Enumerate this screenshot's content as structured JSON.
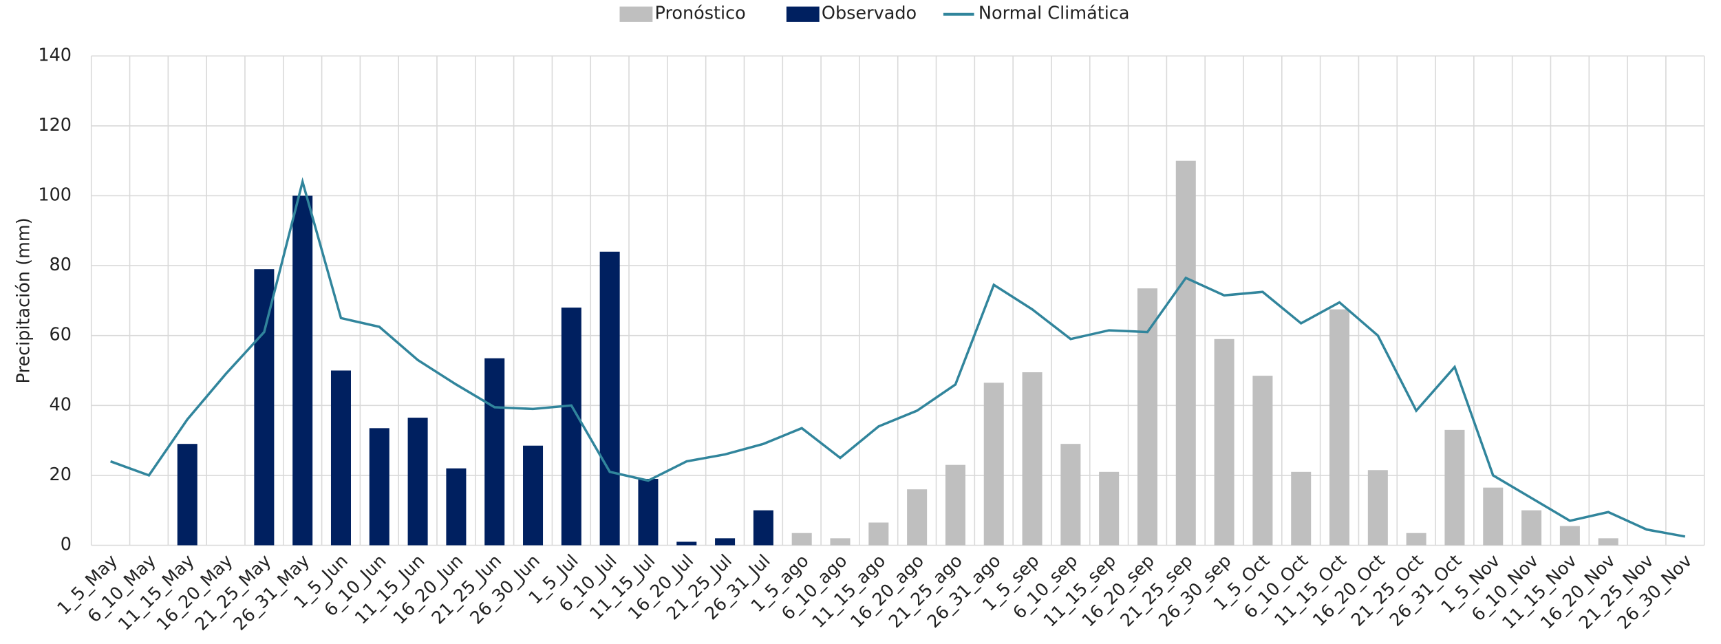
{
  "chart_data": {
    "type": "bar_line",
    "y_label": "Precipitación (mm)",
    "categories": [
      "1_5_May",
      "6_10_May",
      "11_15_May",
      "16_20_May",
      "21_25_May",
      "26_31_May",
      "1_5_Jun",
      "6_10_Jun",
      "11_15_Jun",
      "16_20_Jun",
      "21_25_Jun",
      "26_30_Jun",
      "1_5_Jul",
      "6_10_Jul",
      "11_15_Jul",
      "16_20_Jul",
      "21_25_Jul",
      "26_31_Jul",
      "1_5_ago",
      "6_10_ago",
      "11_15_ago",
      "16_20_ago",
      "21_25_ago",
      "26_31_ago",
      "1_5_sep",
      "6_10_sep",
      "11_15_sep",
      "16_20_sep",
      "21_25_sep",
      "26_30_sep",
      "1_5_Oct",
      "6_10_Oct",
      "11_15_Oct",
      "16_20_Oct",
      "21_25_Oct",
      "26_31_Oct",
      "1_5_Nov",
      "6_10_Nov",
      "11_15_Nov",
      "16_20_Nov",
      "21_25_Nov",
      "26_30_Nov"
    ],
    "series": [
      {
        "name": "Pronóstico",
        "kind": "bar",
        "color": "#bfbfbf",
        "values": [
          null,
          null,
          null,
          null,
          null,
          null,
          null,
          null,
          null,
          null,
          null,
          null,
          null,
          null,
          null,
          null,
          null,
          null,
          3.5,
          2,
          6.5,
          16,
          23,
          46.5,
          49.5,
          29,
          21,
          73.5,
          110,
          59,
          48.5,
          21,
          67.5,
          21.5,
          3.5,
          33,
          16.5,
          10,
          5.5,
          2,
          0,
          null
        ]
      },
      {
        "name": "Observado",
        "kind": "bar",
        "color": "#002060",
        "values": [
          null,
          null,
          29,
          null,
          79,
          100,
          50,
          33.5,
          36.5,
          22,
          53.5,
          28.5,
          68,
          84,
          19,
          1,
          2,
          10,
          null,
          null,
          null,
          null,
          null,
          null,
          null,
          null,
          null,
          null,
          null,
          null,
          null,
          null,
          null,
          null,
          null,
          null,
          null,
          null,
          null,
          null,
          null,
          null
        ]
      },
      {
        "name": "Normal Climática",
        "kind": "line",
        "color": "#31859c",
        "values": [
          24,
          20,
          36,
          49,
          61,
          104,
          65,
          62.5,
          53,
          46,
          39.5,
          39,
          40,
          21,
          18.5,
          24,
          26,
          29,
          33.5,
          25,
          34,
          38.5,
          46,
          74.5,
          67.5,
          59,
          61.5,
          61,
          76.5,
          71.5,
          72.5,
          63.5,
          69.5,
          60,
          38.5,
          51,
          20,
          13.5,
          7,
          9.5,
          4.5,
          2.5
        ]
      }
    ],
    "ylim": [
      0,
      140
    ],
    "yticks": [
      0,
      20,
      40,
      60,
      80,
      100,
      120,
      140
    ],
    "grid": true,
    "legend": "top"
  }
}
